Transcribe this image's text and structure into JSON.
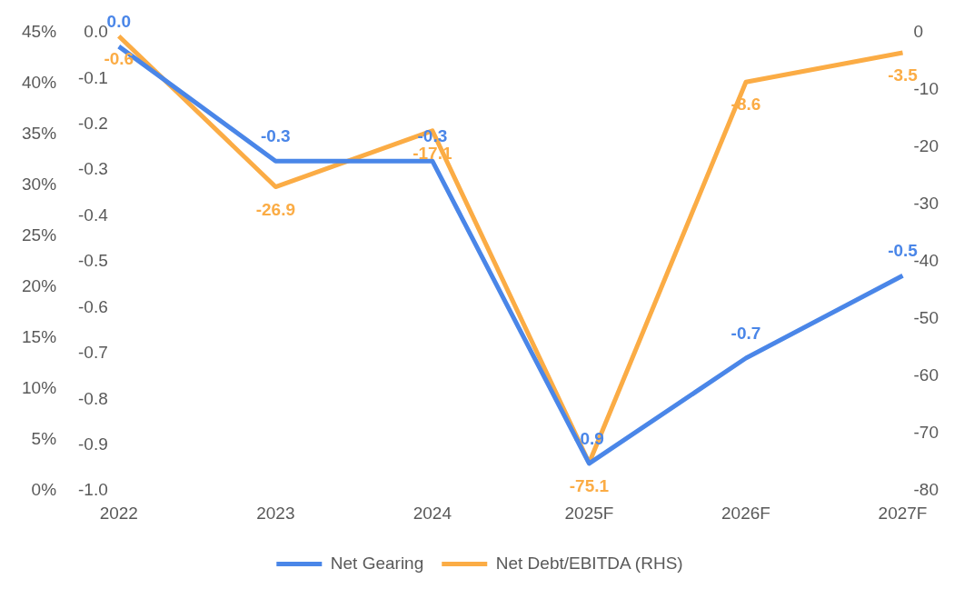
{
  "chart_data": {
    "type": "line",
    "categories": [
      "2022",
      "2023",
      "2024",
      "2025F",
      "2026F",
      "2027F"
    ],
    "series": [
      {
        "name": "Net Gearing",
        "color": "#4a86e8",
        "axis": "y",
        "values": [
          -0.03,
          -0.28,
          -0.28,
          -0.94,
          -0.71,
          -0.53
        ],
        "value_labels": [
          "0.0",
          "-0.3",
          "-0.3",
          "-0.9",
          "-0.7",
          "-0.5"
        ]
      },
      {
        "name": "Net Debt/EBITDA (RHS)",
        "color": "#fbac45",
        "axis": "y2",
        "values": [
          -0.6,
          -26.9,
          -17.1,
          -75.1,
          -8.6,
          -3.5
        ],
        "value_labels": [
          "-0.6",
          "-26.9",
          "-17.1",
          "-75.1",
          "-8.6",
          "-3.5"
        ]
      }
    ],
    "ylim": [
      -1.0,
      0.0
    ],
    "yticks": [
      {
        "value": -1.0,
        "label": "-1.0"
      },
      {
        "value": -0.9,
        "label": "-0.9"
      },
      {
        "value": -0.8,
        "label": "-0.8"
      },
      {
        "value": -0.7,
        "label": "-0.7"
      },
      {
        "value": -0.6,
        "label": "-0.6"
      },
      {
        "value": -0.5,
        "label": "-0.5"
      },
      {
        "value": -0.4,
        "label": "-0.4"
      },
      {
        "value": -0.3,
        "label": "-0.3"
      },
      {
        "value": -0.2,
        "label": "-0.2"
      },
      {
        "value": -0.1,
        "label": "-0.1"
      },
      {
        "value": 0,
        "label": "0.0"
      }
    ],
    "y2lim": [
      -80,
      0
    ],
    "y2ticks": [
      -80,
      -70,
      -60,
      -50,
      -40,
      -30,
      -20,
      -10,
      0
    ],
    "y3lim": [
      0,
      45
    ],
    "y3ticks": [
      {
        "value": 0,
        "label": "0%"
      },
      {
        "value": 5,
        "label": "5%"
      },
      {
        "value": 10,
        "label": "10%"
      },
      {
        "value": 15,
        "label": "15%"
      },
      {
        "value": 20,
        "label": "20%"
      },
      {
        "value": 25,
        "label": "25%"
      },
      {
        "value": 30,
        "label": "30%"
      },
      {
        "value": 35,
        "label": "35%"
      },
      {
        "value": 40,
        "label": "40%"
      },
      {
        "value": 45,
        "label": "45%"
      }
    ],
    "grid": false,
    "legend": "bottom",
    "marker": "none",
    "line_style": "solid"
  }
}
